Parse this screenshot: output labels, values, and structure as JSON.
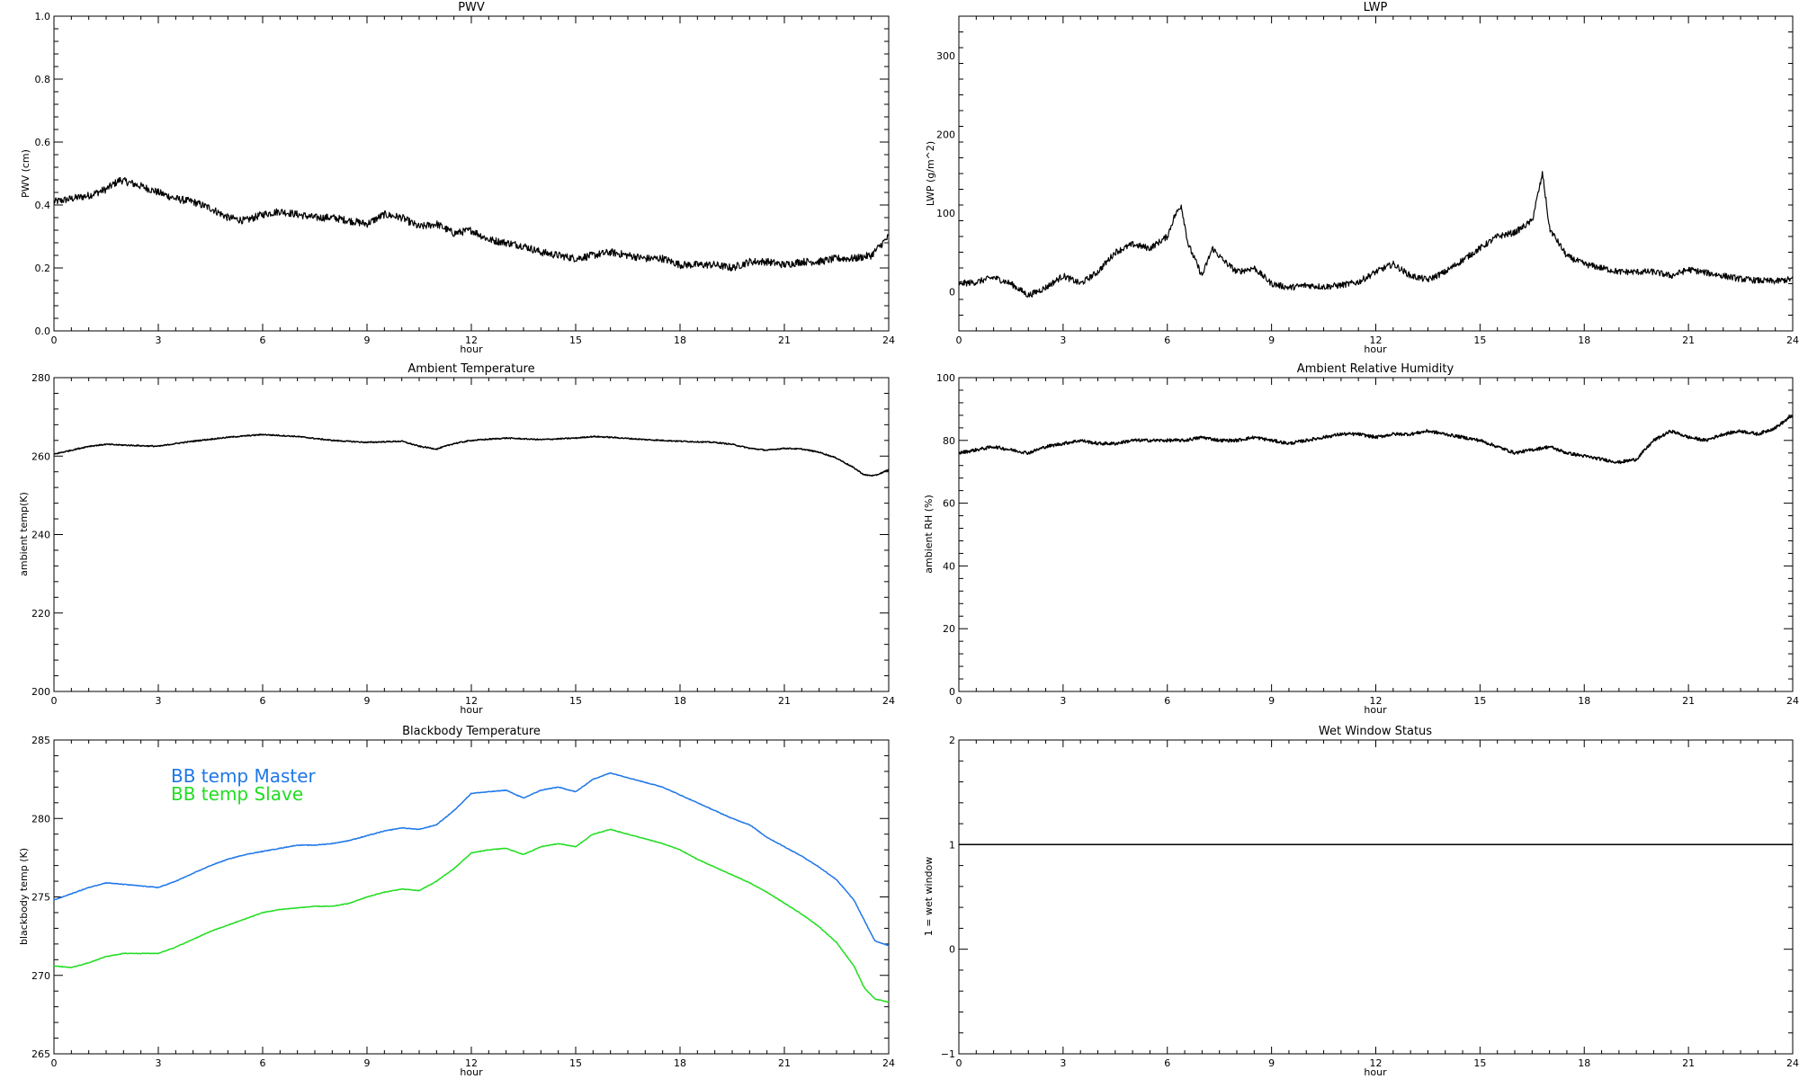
{
  "chart_data": [
    {
      "id": "pwv",
      "type": "line",
      "title": "PWV",
      "xlabel": "hour",
      "ylabel": "PWV (cm)",
      "xlim": [
        0,
        24
      ],
      "ylim": [
        0,
        1
      ],
      "xticks": [
        0,
        3,
        6,
        9,
        12,
        15,
        18,
        21,
        24
      ],
      "yticks": [
        0,
        0.2,
        0.4,
        0.6,
        0.8,
        1
      ],
      "ytick_labels": [
        "0.0",
        "0.2",
        "0.4",
        "0.6",
        "0.8",
        "1.0"
      ],
      "series": [
        {
          "color": "#000000",
          "noise": 0.012,
          "x": [
            0,
            0.5,
            1,
            1.5,
            1.9,
            2.5,
            3,
            3.5,
            4,
            4.5,
            5,
            5.5,
            6,
            6.5,
            7,
            7.5,
            8,
            8.5,
            9,
            9.5,
            10,
            10.5,
            11,
            11.5,
            12,
            12.5,
            13,
            13.5,
            14,
            14.5,
            15,
            15.5,
            16,
            16.5,
            17,
            17.5,
            18,
            18.5,
            19,
            19.5,
            20,
            20.5,
            21,
            21.5,
            22,
            22.5,
            23,
            23.5,
            24
          ],
          "y": [
            0.41,
            0.42,
            0.43,
            0.45,
            0.48,
            0.46,
            0.44,
            0.42,
            0.41,
            0.39,
            0.36,
            0.35,
            0.37,
            0.38,
            0.37,
            0.36,
            0.36,
            0.35,
            0.34,
            0.37,
            0.36,
            0.33,
            0.34,
            0.31,
            0.32,
            0.29,
            0.28,
            0.27,
            0.25,
            0.24,
            0.23,
            0.24,
            0.25,
            0.24,
            0.23,
            0.23,
            0.21,
            0.21,
            0.21,
            0.2,
            0.22,
            0.22,
            0.21,
            0.22,
            0.22,
            0.23,
            0.23,
            0.24,
            0.3
          ]
        }
      ]
    },
    {
      "id": "lwp",
      "type": "line",
      "title": "LWP",
      "xlabel": "hour",
      "ylabel": "LWP (g/m^2)",
      "xlim": [
        0,
        24
      ],
      "ylim": [
        -50,
        350
      ],
      "xticks": [
        0,
        3,
        6,
        9,
        12,
        15,
        18,
        21,
        24
      ],
      "yticks": [
        0,
        100,
        200,
        300
      ],
      "ytick_labels": [
        "0",
        "100",
        "200",
        "300"
      ],
      "series": [
        {
          "color": "#000000",
          "noise": 4,
          "x": [
            0,
            0.5,
            1,
            1.5,
            2,
            2.5,
            3,
            3.5,
            4,
            4.5,
            5,
            5.5,
            6,
            6.2,
            6.4,
            6.6,
            6.8,
            7,
            7.3,
            7.6,
            8,
            8.5,
            9,
            9.5,
            10,
            10.5,
            11,
            11.5,
            12,
            12.5,
            13,
            13.5,
            14,
            14.5,
            15,
            15.5,
            16,
            16.5,
            16.8,
            17,
            17.5,
            18,
            18.5,
            19,
            19.5,
            20,
            20.5,
            21,
            21.5,
            22,
            22.5,
            23,
            23.5,
            24
          ],
          "y": [
            10,
            12,
            18,
            10,
            -5,
            5,
            20,
            10,
            25,
            50,
            60,
            55,
            70,
            95,
            110,
            60,
            40,
            20,
            55,
            40,
            25,
            30,
            10,
            5,
            8,
            6,
            8,
            12,
            25,
            35,
            20,
            15,
            25,
            40,
            55,
            70,
            75,
            90,
            150,
            80,
            45,
            35,
            30,
            25,
            25,
            25,
            20,
            28,
            24,
            20,
            16,
            14,
            13,
            16
          ]
        }
      ]
    },
    {
      "id": "temp",
      "type": "line",
      "title": "Ambient Temperature",
      "xlabel": "hour",
      "ylabel": "ambient temp(K)",
      "xlim": [
        0,
        24
      ],
      "ylim": [
        200,
        280
      ],
      "xticks": [
        0,
        3,
        6,
        9,
        12,
        15,
        18,
        21,
        24
      ],
      "yticks": [
        200,
        220,
        240,
        260,
        280
      ],
      "ytick_labels": [
        "200",
        "220",
        "240",
        "260",
        "280"
      ],
      "series": [
        {
          "color": "#000000",
          "noise": 0.15,
          "x": [
            0,
            0.5,
            1,
            1.5,
            2,
            3,
            3.5,
            4,
            5,
            6,
            7,
            8,
            9,
            10,
            10.5,
            11,
            11.5,
            12,
            13,
            14,
            15,
            15.5,
            16,
            17,
            18,
            19,
            19.5,
            20,
            20.5,
            21,
            21.5,
            22,
            22.5,
            23,
            23.3,
            23.6,
            24
          ],
          "y": [
            260.5,
            261.5,
            262.5,
            263,
            262.8,
            262.5,
            263.2,
            263.8,
            264.8,
            265.5,
            265,
            264,
            263.5,
            263.8,
            262.5,
            261.8,
            263.2,
            264,
            264.6,
            264.2,
            264.6,
            265,
            264.8,
            264.2,
            263.8,
            263.5,
            263,
            262,
            261.5,
            262,
            261.8,
            261,
            259.5,
            257,
            255.2,
            255,
            256.5
          ]
        }
      ]
    },
    {
      "id": "rh",
      "type": "line",
      "title": "Ambient Relative Humidity",
      "xlabel": "hour",
      "ylabel": "ambient RH (%)",
      "xlim": [
        0,
        24
      ],
      "ylim": [
        0,
        100
      ],
      "xticks": [
        0,
        3,
        6,
        9,
        12,
        15,
        18,
        21,
        24
      ],
      "yticks": [
        0,
        20,
        40,
        60,
        80,
        100
      ],
      "ytick_labels": [
        "0",
        "20",
        "40",
        "60",
        "80",
        "100"
      ],
      "series": [
        {
          "color": "#000000",
          "noise": 0.5,
          "x": [
            0,
            0.5,
            1,
            1.5,
            2,
            2.5,
            3,
            3.5,
            4,
            4.5,
            5,
            5.5,
            6,
            6.5,
            7,
            7.5,
            8,
            8.5,
            9,
            9.5,
            10,
            10.5,
            11,
            11.5,
            12,
            12.5,
            13,
            13.5,
            14,
            14.5,
            15,
            15.5,
            16,
            16.5,
            17,
            17.5,
            18,
            18.5,
            19,
            19.5,
            20,
            20.5,
            21,
            21.5,
            22,
            22.5,
            23,
            23.5,
            24
          ],
          "y": [
            76,
            77,
            78,
            77,
            76,
            78,
            79,
            80,
            79,
            79,
            80,
            80,
            80,
            80,
            81,
            80,
            80,
            81,
            80,
            79,
            80,
            81,
            82,
            82,
            81,
            82,
            82,
            83,
            82,
            81,
            80,
            78,
            76,
            77,
            78,
            76,
            75,
            74,
            73,
            74,
            80,
            83,
            81,
            80,
            82,
            83,
            82,
            84,
            88
          ]
        }
      ]
    },
    {
      "id": "bb",
      "type": "line",
      "title": "Blackbody Temperature",
      "xlabel": "hour",
      "ylabel": "blackbody temp (K)",
      "xlim": [
        0,
        24
      ],
      "ylim": [
        265,
        285
      ],
      "xticks": [
        0,
        3,
        6,
        9,
        12,
        15,
        18,
        21,
        24
      ],
      "yticks": [
        265,
        270,
        275,
        280,
        285
      ],
      "ytick_labels": [
        "265",
        "270",
        "275",
        "280",
        "285"
      ],
      "legend": [
        "BB temp Master",
        "BB temp Slave"
      ],
      "series": [
        {
          "name": "BB temp Master",
          "color": "#1f77e8",
          "noise": 0.02,
          "x": [
            0,
            0.5,
            1,
            1.5,
            2,
            2.5,
            3,
            3.5,
            4,
            4.5,
            5,
            5.5,
            6,
            6.5,
            7,
            7.5,
            8,
            8.5,
            9,
            9.5,
            10,
            10.5,
            11,
            11.5,
            12,
            12.5,
            13,
            13.5,
            14,
            14.5,
            15,
            15.5,
            16,
            16.5,
            17,
            17.5,
            18,
            18.5,
            19,
            19.5,
            20,
            20.5,
            21,
            21.5,
            22,
            22.5,
            23,
            23.3,
            23.6,
            24
          ],
          "y": [
            274.8,
            275.2,
            275.6,
            275.9,
            275.8,
            275.7,
            275.6,
            276,
            276.5,
            277,
            277.4,
            277.7,
            277.9,
            278.1,
            278.3,
            278.3,
            278.4,
            278.6,
            278.9,
            279.2,
            279.4,
            279.3,
            279.6,
            280.5,
            281.6,
            281.7,
            281.8,
            281.3,
            281.8,
            282,
            281.7,
            282.5,
            282.9,
            282.6,
            282.3,
            282,
            281.5,
            281,
            280.5,
            280,
            279.6,
            278.8,
            278.2,
            277.6,
            276.9,
            276.1,
            274.8,
            273.5,
            272.2,
            271.9
          ]
        },
        {
          "name": "BB temp Slave",
          "color": "#22dd22",
          "noise": 0.02,
          "x": [
            0,
            0.5,
            1,
            1.5,
            2,
            2.5,
            3,
            3.5,
            4,
            4.5,
            5,
            5.5,
            6,
            6.5,
            7,
            7.5,
            8,
            8.5,
            9,
            9.5,
            10,
            10.5,
            11,
            11.5,
            12,
            12.5,
            13,
            13.5,
            14,
            14.5,
            15,
            15.5,
            16,
            16.5,
            17,
            17.5,
            18,
            18.5,
            19,
            19.5,
            20,
            20.5,
            21,
            21.5,
            22,
            22.5,
            23,
            23.3,
            23.6,
            24
          ],
          "y": [
            270.6,
            270.5,
            270.8,
            271.2,
            271.4,
            271.4,
            271.4,
            271.8,
            272.3,
            272.8,
            273.2,
            273.6,
            274,
            274.2,
            274.3,
            274.4,
            274.4,
            274.6,
            275,
            275.3,
            275.5,
            275.4,
            276,
            276.8,
            277.8,
            278,
            278.1,
            277.7,
            278.2,
            278.4,
            278.2,
            279,
            279.3,
            279,
            278.7,
            278.4,
            278,
            277.4,
            276.9,
            276.4,
            275.9,
            275.3,
            274.6,
            273.9,
            273.1,
            272.1,
            270.6,
            269.2,
            268.5,
            268.3
          ]
        }
      ]
    },
    {
      "id": "wet",
      "type": "line",
      "title": "Wet Window Status",
      "xlabel": "hour",
      "ylabel": "1 = wet window",
      "xlim": [
        0,
        24
      ],
      "ylim": [
        -1,
        2
      ],
      "xticks": [
        0,
        3,
        6,
        9,
        12,
        15,
        18,
        21,
        24
      ],
      "yticks": [
        -1,
        0,
        1,
        2
      ],
      "ytick_labels": [
        "−1",
        "0",
        "1",
        "2"
      ],
      "series": [
        {
          "color": "#000000",
          "noise": 0,
          "x": [
            0,
            24
          ],
          "y": [
            1,
            1
          ]
        }
      ]
    }
  ]
}
